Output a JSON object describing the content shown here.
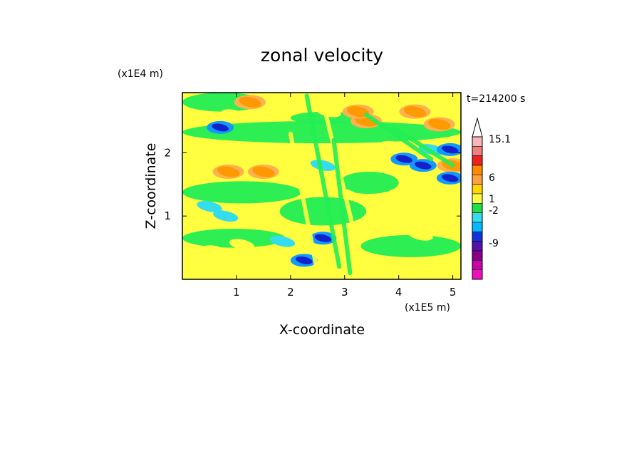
{
  "chart_data": {
    "type": "heatmap",
    "title": "zonal velocity",
    "xlabel": "X-coordinate",
    "ylabel": "Z-coordinate",
    "x_unit": "(x1E5 m)",
    "y_unit": "(x1E4 m)",
    "time_label": "t=214200 s",
    "xlim": [
      0,
      5.15
    ],
    "ylim": [
      0,
      2.95
    ],
    "x_ticks": [
      1,
      2,
      3,
      4,
      5
    ],
    "y_ticks": [
      1,
      2
    ],
    "colorbar": {
      "levels": [
        "15.1",
        "6",
        "1",
        "-2",
        "-9"
      ],
      "level_values": [
        15.1,
        6,
        1,
        -2,
        -9
      ],
      "colors": [
        "#f5b7b7",
        "#f08080",
        "#ee2020",
        "#ff8a00",
        "#ffa040",
        "#ffd700",
        "#ffff40",
        "#22dd44",
        "#33ddee",
        "#00bbff",
        "#1133dd",
        "#5511aa",
        "#880088",
        "#cc00aa",
        "#ee11bb"
      ]
    },
    "field_colors": {
      "yellow": "#ffff40",
      "green": "#22ee55",
      "cyan": "#33ddee",
      "sky": "#1199ff",
      "blue": "#1122cc",
      "orange": "#ff9900",
      "light_orange": "#ffb050",
      "gold": "#ffd000",
      "red": "#ff3300"
    },
    "features": [
      {
        "x": 0.55,
        "z": 2.05,
        "value": 1
      },
      {
        "x": 0.7,
        "z": 2.4,
        "value": -9
      },
      {
        "x": 0.85,
        "z": 1.7,
        "value": 6
      },
      {
        "x": 0.95,
        "z": 2.6,
        "value": 1
      },
      {
        "x": 1.25,
        "z": 2.8,
        "value": 6
      },
      {
        "x": 0.5,
        "z": 1.15,
        "value": -2
      },
      {
        "x": 0.8,
        "z": 1.0,
        "value": -2
      },
      {
        "x": 1.5,
        "z": 1.7,
        "value": 6
      },
      {
        "x": 1.1,
        "z": 0.55,
        "value": 1
      },
      {
        "x": 2.7,
        "z": 2.65,
        "value": 1
      },
      {
        "x": 3.4,
        "z": 2.5,
        "value": 6
      },
      {
        "x": 3.25,
        "z": 2.65,
        "value": 6
      },
      {
        "x": 3.9,
        "z": 2.1,
        "value": 1
      },
      {
        "x": 4.1,
        "z": 1.9,
        "value": -9
      },
      {
        "x": 4.45,
        "z": 1.8,
        "value": -9
      },
      {
        "x": 4.6,
        "z": 2.05,
        "value": -2
      },
      {
        "x": 4.95,
        "z": 2.05,
        "value": -9
      },
      {
        "x": 5.0,
        "z": 1.8,
        "value": 6
      },
      {
        "x": 4.95,
        "z": 1.6,
        "value": -9
      },
      {
        "x": 4.3,
        "z": 2.65,
        "value": 6
      },
      {
        "x": 4.75,
        "z": 2.45,
        "value": 6
      },
      {
        "x": 4.2,
        "z": 1.15,
        "value": 1
      },
      {
        "x": 4.4,
        "z": 0.7,
        "value": 1
      },
      {
        "x": 3.8,
        "z": 0.15,
        "value": 1
      },
      {
        "x": 2.6,
        "z": 0.65,
        "value": -9
      },
      {
        "x": 2.25,
        "z": 0.3,
        "value": -9
      },
      {
        "x": 1.85,
        "z": 0.6,
        "value": -2
      },
      {
        "x": 1.6,
        "z": 0.2,
        "value": 1
      },
      {
        "x": 0.6,
        "z": 0.45,
        "value": 1
      },
      {
        "x": 2.1,
        "z": 1.9,
        "value": 1
      },
      {
        "x": 2.6,
        "z": 1.8,
        "value": -2
      },
      {
        "x": 3.0,
        "z": 1.35,
        "value": 1
      }
    ]
  }
}
